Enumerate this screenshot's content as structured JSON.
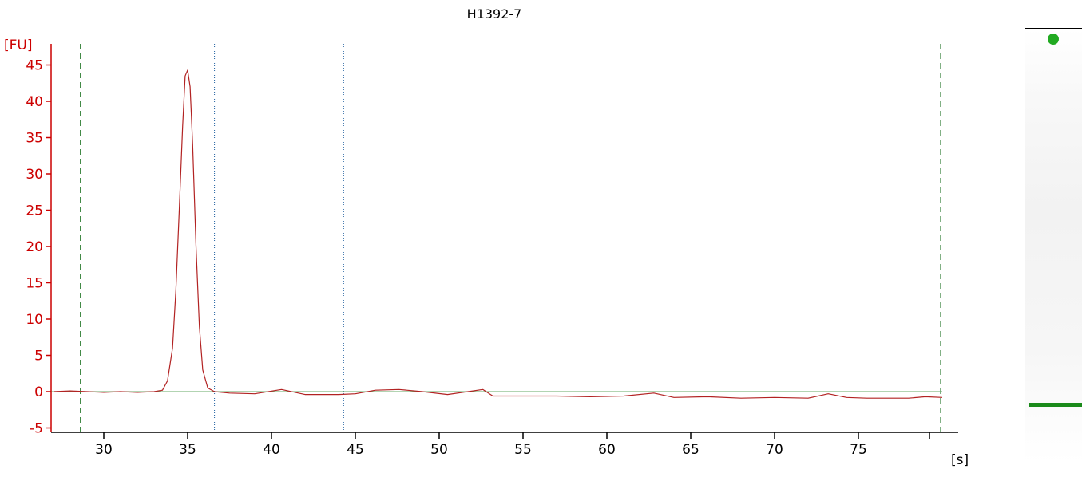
{
  "chart_data": {
    "type": "line",
    "title": "H1392-7",
    "ylabel": "[FU]",
    "xlabel": "[s]",
    "xlim": [
      27,
      80
    ],
    "ylim": [
      -6,
      47
    ],
    "xticks": [
      30,
      35,
      40,
      45,
      50,
      55,
      60,
      65,
      70,
      75
    ],
    "yticks": [
      -5,
      0,
      5,
      10,
      15,
      20,
      25,
      30,
      35,
      40,
      45
    ],
    "grid": false,
    "series": [
      {
        "color": "#b22222",
        "x": [
          27.0,
          28.0,
          29.0,
          30.0,
          31.0,
          32.0,
          33.0,
          33.5,
          33.8,
          34.1,
          34.3,
          34.5,
          34.7,
          34.85,
          35.0,
          35.15,
          35.3,
          35.5,
          35.7,
          35.9,
          36.2,
          36.6,
          37.5,
          39,
          40.6,
          42,
          44,
          45,
          46.2,
          47.6,
          49,
          50.5,
          52.6,
          53.2,
          55,
          57,
          59,
          61,
          62.8,
          64,
          66,
          68,
          70,
          72,
          73.2,
          74.3,
          75.5,
          77,
          78,
          79,
          80
        ],
        "y": [
          0.0,
          0.1,
          0.0,
          -0.1,
          0.0,
          -0.1,
          0.0,
          0.2,
          1.5,
          6.0,
          14.0,
          25.0,
          36.5,
          43.5,
          44.3,
          42.0,
          34.0,
          20.0,
          9.0,
          3.0,
          0.5,
          0.0,
          -0.2,
          -0.3,
          0.3,
          -0.4,
          -0.4,
          -0.3,
          0.2,
          0.3,
          0.0,
          -0.4,
          0.3,
          -0.6,
          -0.6,
          -0.6,
          -0.7,
          -0.6,
          -0.2,
          -0.8,
          -0.7,
          -0.9,
          -0.8,
          -0.9,
          -0.3,
          -0.8,
          -0.9,
          -0.9,
          -0.9,
          -0.7,
          -0.8
        ]
      }
    ],
    "baseline": {
      "y": 0,
      "from": 27,
      "to": 80,
      "color": "#66aa66"
    },
    "region_markers": [
      {
        "x": 28.6,
        "style": "dashed",
        "color": "#2e7d32"
      },
      {
        "x": 79.9,
        "style": "dashed",
        "color": "#2e7d32"
      }
    ],
    "peak_markers": [
      {
        "x": 36.6,
        "style": "dotted",
        "color": "#1f5f9f"
      },
      {
        "x": 44.3,
        "style": "dotted",
        "color": "#1f5f9f"
      }
    ],
    "axis_color": "#cc0000",
    "gel": {
      "marker_color": "#22aa22",
      "band_color": "#1a8a1a",
      "band_level": 0.82
    }
  }
}
